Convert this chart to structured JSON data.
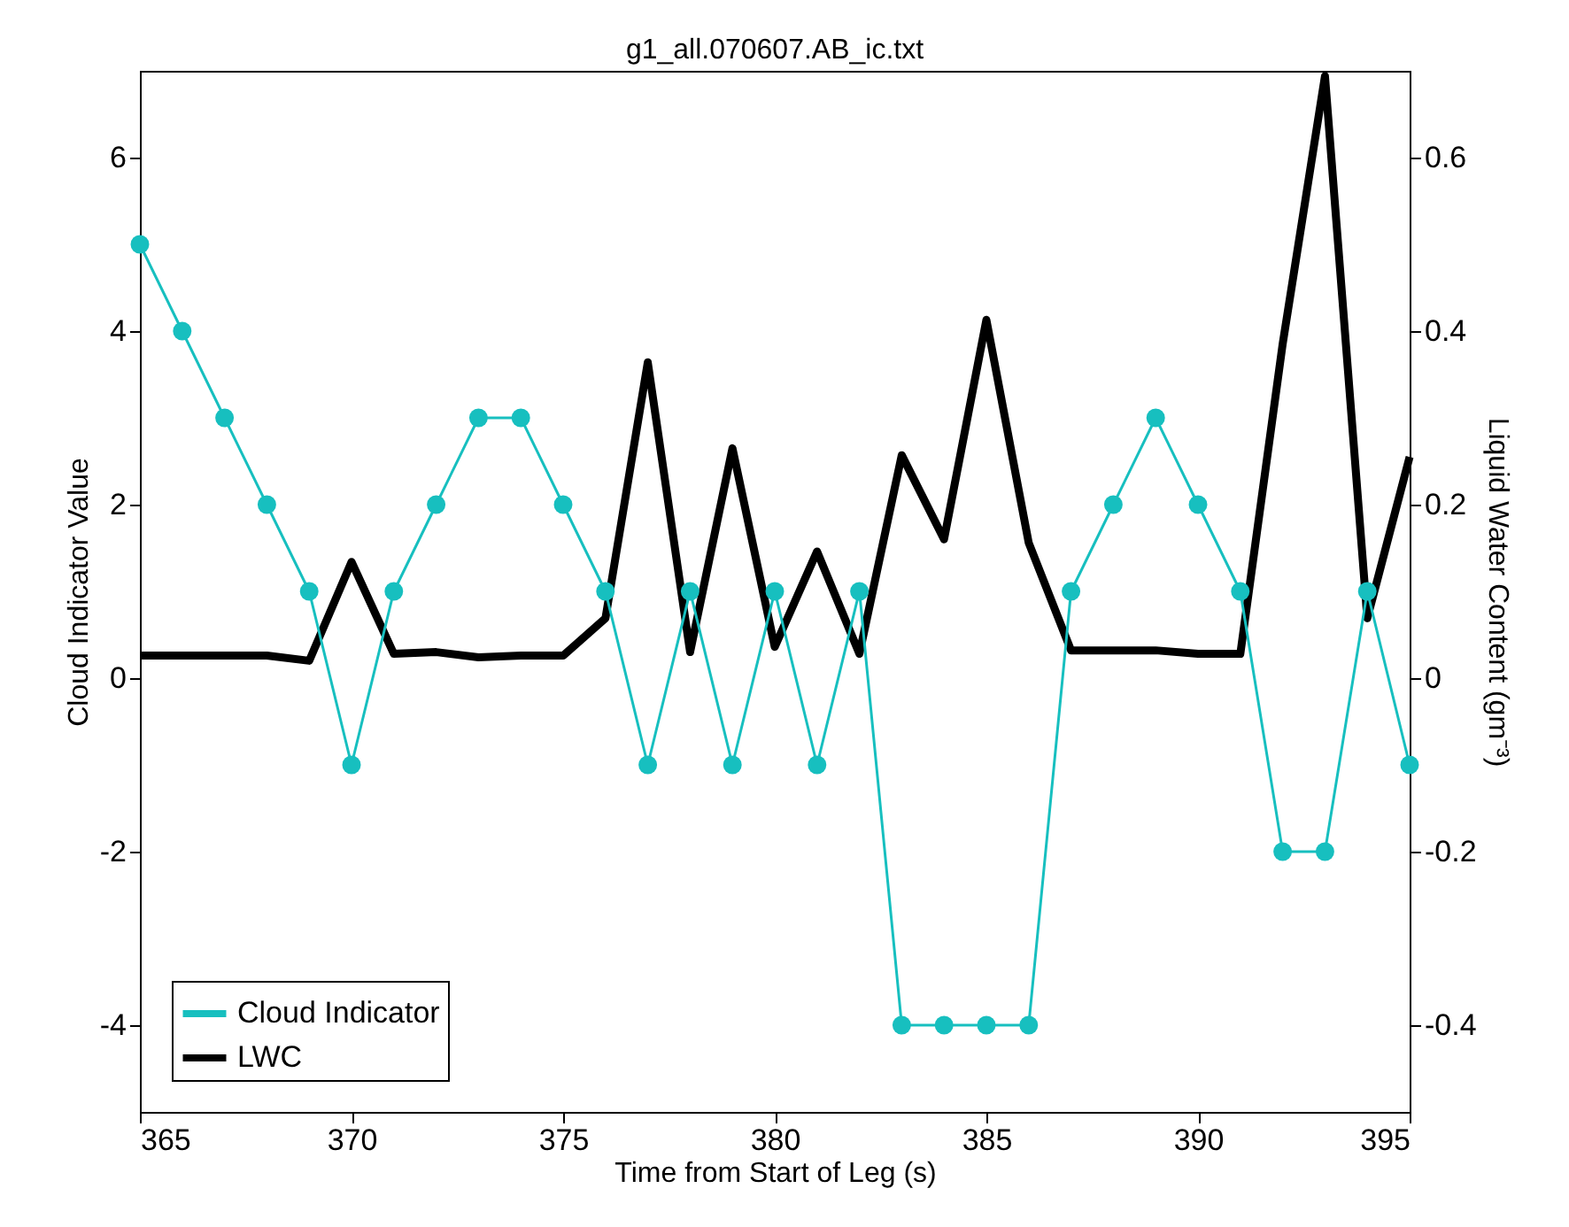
{
  "chart_data": {
    "type": "line",
    "title": "g1_all.070607.AB_ic.txt",
    "xlabel": "Time from Start of Leg (s)",
    "ylabel": "Cloud Indicator Value",
    "y2label": "Liquid Water Content (gm⁻³)",
    "x": [
      365,
      366,
      367,
      368,
      369,
      370,
      371,
      372,
      373,
      374,
      375,
      376,
      377,
      378,
      379,
      380,
      381,
      382,
      383,
      384,
      385,
      386,
      387,
      388,
      389,
      390,
      391,
      392,
      393,
      394,
      395
    ],
    "series": [
      {
        "name": "Cloud Indicator",
        "color": "#17bfbf",
        "marker": "circle",
        "axis": "y",
        "values": [
          5,
          4,
          3,
          2,
          1,
          -1,
          1,
          2,
          3,
          3,
          2,
          1,
          -1,
          1,
          -1,
          1,
          -1,
          1,
          -4,
          -4,
          -4,
          -4,
          1,
          2,
          3,
          2,
          1,
          -2,
          -2,
          1,
          -1
        ]
      },
      {
        "name": "LWC",
        "color": "#000000",
        "marker": "none",
        "axis": "y2",
        "values": [
          0.026,
          0.026,
          0.026,
          0.026,
          0.02,
          0.134,
          0.028,
          0.03,
          0.024,
          0.026,
          0.026,
          0.069,
          0.364,
          0.03,
          0.265,
          0.036,
          0.146,
          0.028,
          0.257,
          0.16,
          0.413,
          0.156,
          0.032,
          0.032,
          0.032,
          0.028,
          0.028,
          0.385,
          0.694,
          0.069,
          0.255
        ]
      }
    ],
    "xlim": [
      365,
      395
    ],
    "xticks": [
      365,
      370,
      375,
      380,
      385,
      390,
      395
    ],
    "ylim": [
      -5,
      7
    ],
    "yticks": [
      -4,
      -2,
      0,
      2,
      4,
      6
    ],
    "y2lim": [
      -0.5,
      0.7
    ],
    "y2ticks": [
      -0.4,
      -0.2,
      0,
      0.2,
      0.4,
      0.6
    ],
    "legend": "bottom left",
    "grid": false
  }
}
